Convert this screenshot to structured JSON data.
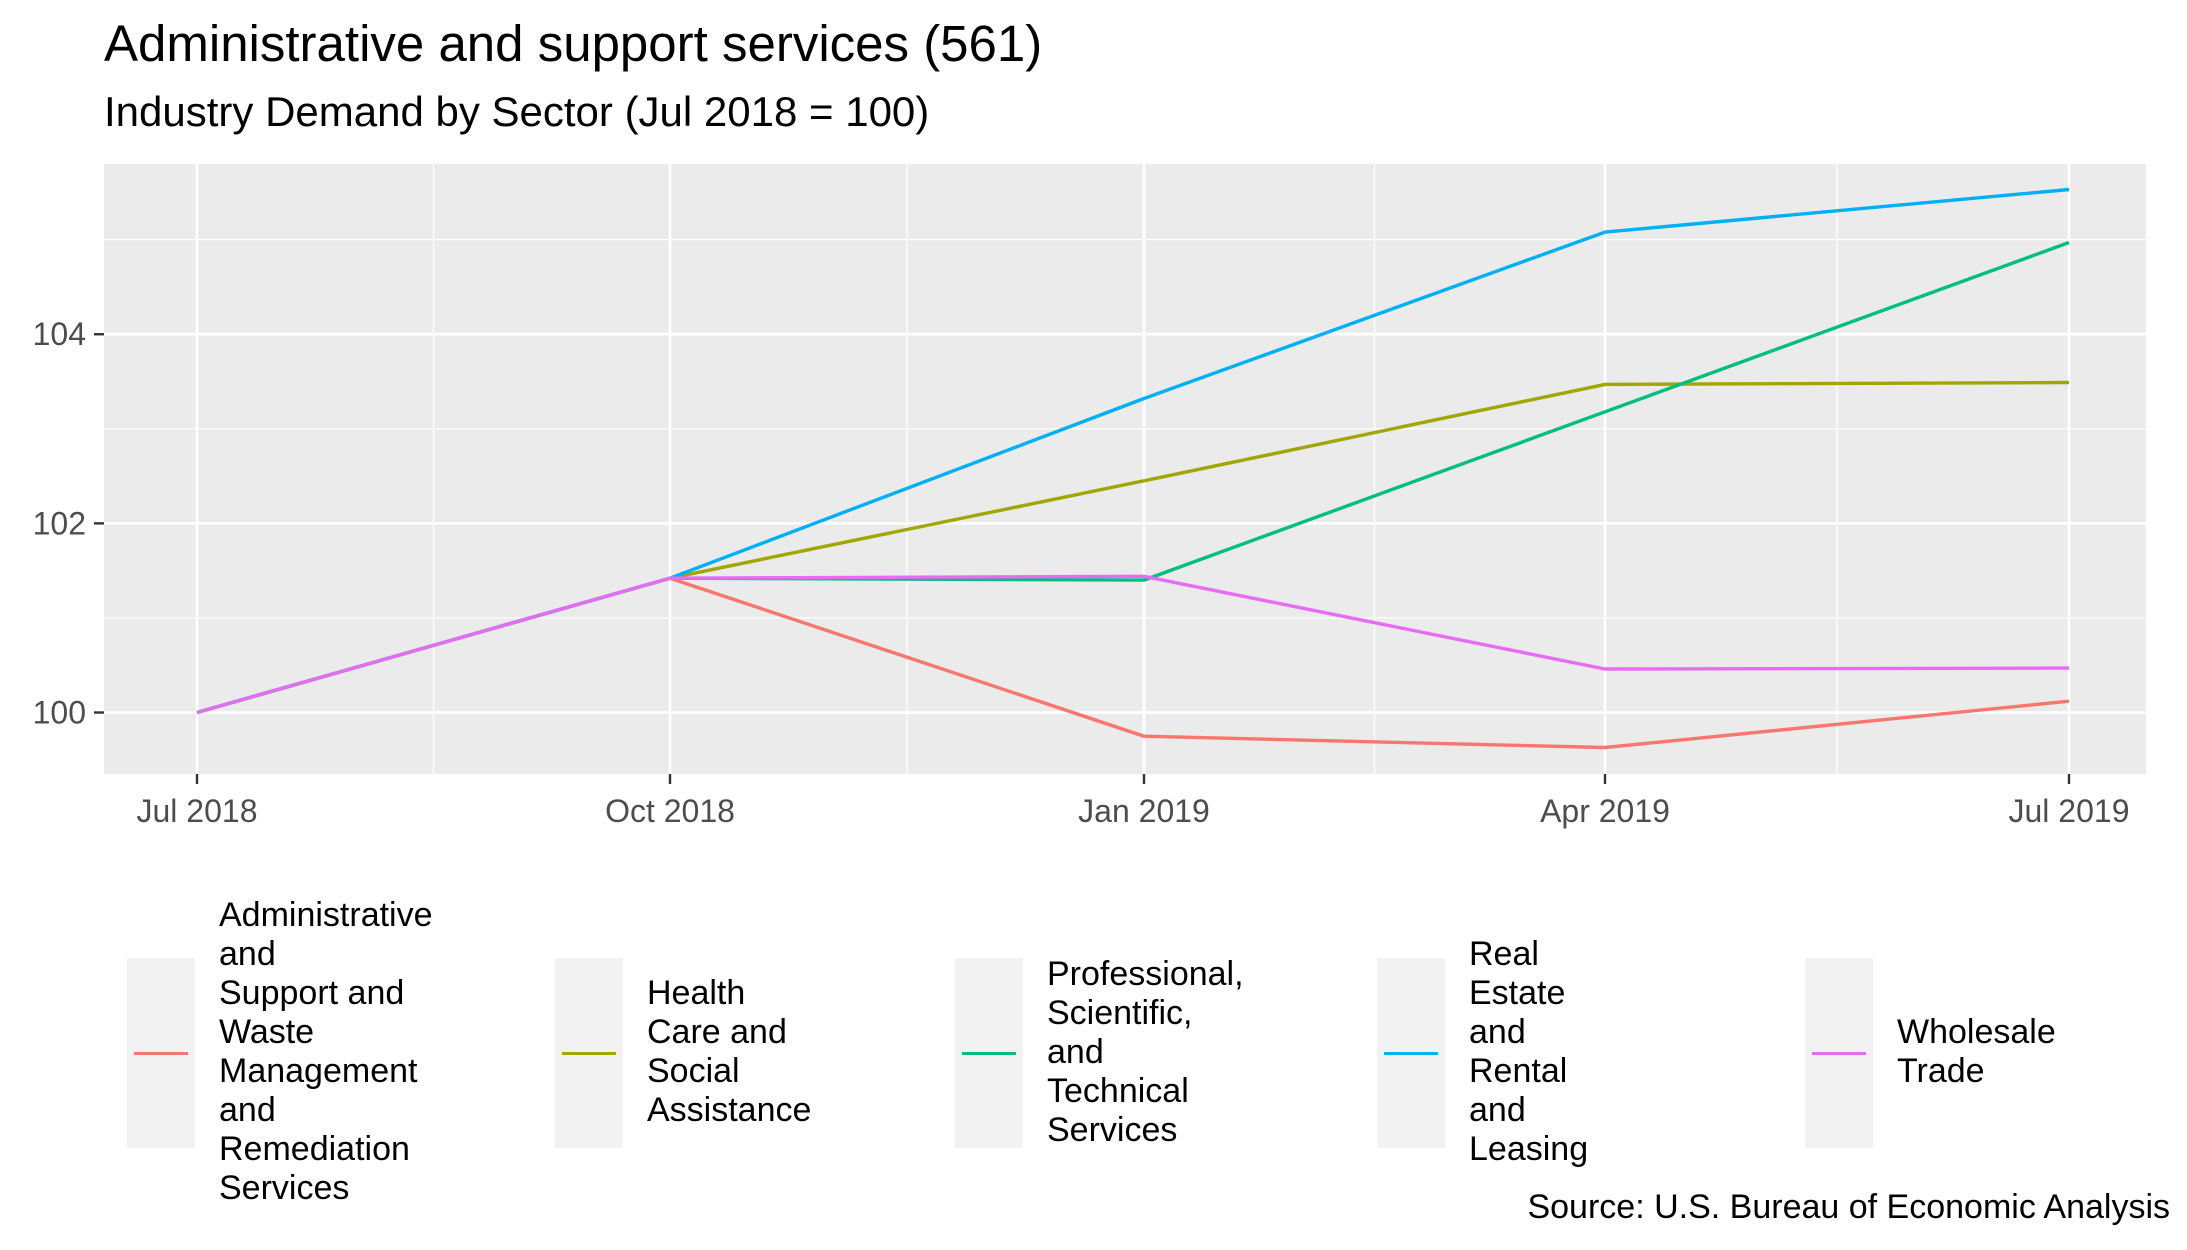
{
  "title": "Administrative and support services (561)",
  "subtitle": "Industry Demand by Sector (Jul 2018 = 100)",
  "caption": "Source: U.S. Bureau of Economic Analysis",
  "chart_data": {
    "type": "line",
    "title": "Administrative and support services (561)",
    "subtitle": "Industry Demand by Sector (Jul 2018 = 100)",
    "xlabel": "",
    "ylabel": "",
    "x": [
      "2018-07",
      "2018-10",
      "2019-01",
      "2019-04",
      "2019-07"
    ],
    "x_tick_labels": [
      "Jul 2018",
      "Oct 2018",
      "Jan 2019",
      "Apr 2019",
      "Jul 2019"
    ],
    "y_ticks": [
      100,
      102,
      104
    ],
    "ylim": [
      99.35,
      105.8
    ],
    "grid": true,
    "legend_position": "bottom",
    "series": [
      {
        "name": "Administrative and\nSupport and Waste\nManagement and\nRemediation\nServices",
        "color": "#F8766D",
        "values": [
          100,
          101.42,
          99.75,
          99.63,
          100.12
        ]
      },
      {
        "name": "Health Care and\nSocial Assistance",
        "color": "#A3A500",
        "values": [
          100,
          101.42,
          102.45,
          103.47,
          103.49
        ]
      },
      {
        "name": "Professional,\nScientific, and\nTechnical Services",
        "color": "#00BF7D",
        "values": [
          100,
          101.42,
          101.4,
          103.18,
          104.97
        ]
      },
      {
        "name": "Real Estate and\nRental and Leasing",
        "color": "#00B0F6",
        "values": [
          100,
          101.42,
          103.32,
          105.08,
          105.53
        ]
      },
      {
        "name": "Wholesale Trade",
        "color": "#E76BF3",
        "values": [
          100,
          101.42,
          101.44,
          100.46,
          100.47
        ]
      }
    ]
  }
}
